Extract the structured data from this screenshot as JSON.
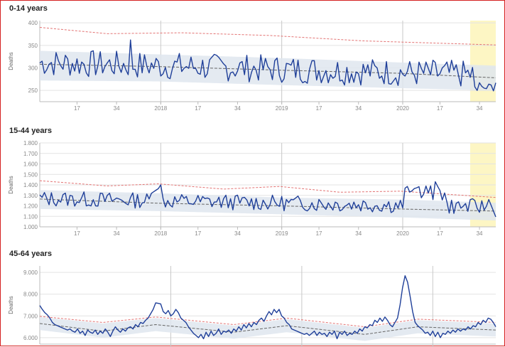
{
  "x_tick_labels": [
    "17",
    "34",
    "2018",
    "17",
    "34",
    "2019",
    "17",
    "34",
    "2020",
    "17",
    "34"
  ],
  "colors": {
    "observed": "#1f3f99",
    "baseline": "#666666",
    "threshold": "#e37373",
    "band": "#dfe6ee",
    "highlight": "#fdf6c4",
    "grid": "#e3e3e3",
    "year_line": "#c8c8c8"
  },
  "chart_data": [
    {
      "type": "line",
      "title": "0-14 years",
      "ylabel": "Deaths",
      "ylim": [
        225,
        405
      ],
      "yticks": [
        250,
        300,
        350,
        400
      ],
      "yticklabels": [
        "250",
        "300",
        "350",
        "400"
      ],
      "x_range": "2017 week 1 to 2020 week 41",
      "series": [
        {
          "role": "observed",
          "values_from": "image"
        },
        {
          "role": "baseline",
          "values": [
            [
              1,
              308
            ],
            [
              52,
              303
            ],
            [
              104,
              295
            ],
            [
              156,
              288
            ],
            [
              197,
              278
            ]
          ]
        },
        {
          "role": "threshold",
          "values": [
            [
              1,
              390
            ],
            [
              30,
              376
            ],
            [
              62,
              378
            ],
            [
              100,
              372
            ],
            [
              140,
              360
            ],
            [
              197,
              351
            ]
          ]
        },
        {
          "role": "band",
          "upper": [
            [
              1,
              338
            ],
            [
              52,
              330
            ],
            [
              104,
              322
            ],
            [
              156,
              312
            ],
            [
              197,
              305
            ]
          ],
          "lower": [
            [
              1,
              272
            ],
            [
              52,
              270
            ],
            [
              104,
              262
            ],
            [
              156,
              255
            ],
            [
              197,
              250
            ]
          ]
        }
      ]
    },
    {
      "type": "line",
      "title": "15-44 years",
      "ylabel": "Deaths",
      "ylim": [
        1000,
        1800
      ],
      "yticks": [
        1000,
        1100,
        1200,
        1300,
        1400,
        1500,
        1600,
        1700,
        1800
      ],
      "yticklabels": [
        "1.000",
        "1.100",
        "1.200",
        "1.300",
        "1.400",
        "1.500",
        "1.600",
        "1.700",
        "1.800"
      ],
      "x_range": "2017 week 1 to 2020 week 41",
      "series": [
        {
          "role": "observed",
          "values_from": "image"
        },
        {
          "role": "baseline",
          "values": [
            [
              1,
              1265
            ],
            [
              52,
              1225
            ],
            [
              104,
              1200
            ],
            [
              156,
              1170
            ],
            [
              197,
              1150
            ]
          ]
        },
        {
          "role": "threshold",
          "values": [
            [
              1,
              1440
            ],
            [
              30,
              1390
            ],
            [
              52,
              1410
            ],
            [
              80,
              1360
            ],
            [
              104,
              1385
            ],
            [
              130,
              1330
            ],
            [
              156,
              1340
            ],
            [
              197,
              1280
            ]
          ]
        },
        {
          "role": "band",
          "upper": [
            [
              1,
              1350
            ],
            [
              52,
              1320
            ],
            [
              104,
              1280
            ],
            [
              156,
              1260
            ],
            [
              197,
              1230
            ]
          ],
          "lower": [
            [
              1,
              1170
            ],
            [
              52,
              1150
            ],
            [
              104,
              1120
            ],
            [
              156,
              1090
            ],
            [
              197,
              1060
            ]
          ]
        }
      ]
    },
    {
      "type": "line",
      "title": "45-64 years",
      "ylabel": "Deaths",
      "ylim": [
        5700,
        9300
      ],
      "yticks": [
        6000,
        7000,
        8000,
        9000
      ],
      "yticklabels": [
        "6.000",
        "7.000",
        "8.000",
        "9.000"
      ],
      "x_range": "2017 week 1 to 2020 week 41",
      "series": [
        {
          "role": "observed",
          "values": [
            [
              1,
              7480
            ],
            [
              2,
              7300
            ],
            [
              3,
              7150
            ],
            [
              4,
              7050
            ],
            [
              5,
              6900
            ],
            [
              6,
              6700
            ],
            [
              7,
              6600
            ],
            [
              8,
              6550
            ],
            [
              9,
              6500
            ],
            [
              10,
              6450
            ],
            [
              11,
              6400
            ],
            [
              12,
              6350
            ],
            [
              13,
              6400
            ],
            [
              14,
              6300
            ],
            [
              15,
              6250
            ],
            [
              16,
              6400
            ],
            [
              17,
              6200
            ],
            [
              18,
              6300
            ],
            [
              19,
              6100
            ],
            [
              20,
              6350
            ],
            [
              21,
              6250
            ],
            [
              22,
              6200
            ],
            [
              23,
              6350
            ],
            [
              24,
              6150
            ],
            [
              25,
              6300
            ],
            [
              26,
              6200
            ],
            [
              27,
              6400
            ],
            [
              28,
              6250
            ],
            [
              29,
              6050
            ],
            [
              30,
              6300
            ],
            [
              31,
              6500
            ],
            [
              32,
              6350
            ],
            [
              33,
              6250
            ],
            [
              34,
              6400
            ],
            [
              35,
              6300
            ],
            [
              36,
              6450
            ],
            [
              37,
              6500
            ],
            [
              38,
              6400
            ],
            [
              39,
              6600
            ],
            [
              40,
              6500
            ],
            [
              41,
              6700
            ],
            [
              42,
              6650
            ],
            [
              43,
              6800
            ],
            [
              44,
              6900
            ],
            [
              45,
              7100
            ],
            [
              46,
              7300
            ],
            [
              47,
              7600
            ],
            [
              48,
              7580
            ],
            [
              49,
              7550
            ],
            [
              50,
              7200
            ],
            [
              51,
              7100
            ],
            [
              52,
              7250
            ],
            [
              53,
              7000
            ],
            [
              54,
              7100
            ],
            [
              55,
              7300
            ],
            [
              56,
              7150
            ],
            [
              57,
              6900
            ],
            [
              58,
              6800
            ],
            [
              59,
              6700
            ],
            [
              60,
              6500
            ],
            [
              61,
              6350
            ],
            [
              62,
              6200
            ],
            [
              63,
              6100
            ],
            [
              64,
              6000
            ],
            [
              65,
              6150
            ],
            [
              66,
              5950
            ],
            [
              67,
              6250
            ],
            [
              68,
              6050
            ],
            [
              69,
              6300
            ],
            [
              70,
              6100
            ],
            [
              71,
              6200
            ],
            [
              72,
              6400
            ],
            [
              73,
              6150
            ],
            [
              74,
              6300
            ],
            [
              75,
              6250
            ],
            [
              76,
              6350
            ],
            [
              77,
              6200
            ],
            [
              78,
              6400
            ],
            [
              79,
              6300
            ],
            [
              80,
              6500
            ],
            [
              81,
              6350
            ],
            [
              82,
              6600
            ],
            [
              83,
              6450
            ],
            [
              84,
              6650
            ],
            [
              85,
              6500
            ],
            [
              86,
              6700
            ],
            [
              87,
              6600
            ],
            [
              88,
              6800
            ],
            [
              89,
              6900
            ],
            [
              90,
              6750
            ],
            [
              91,
              7000
            ],
            [
              92,
              7200
            ],
            [
              93,
              7050
            ],
            [
              94,
              7300
            ],
            [
              95,
              7150
            ],
            [
              96,
              7300
            ],
            [
              97,
              7000
            ],
            [
              98,
              6900
            ],
            [
              99,
              6700
            ],
            [
              100,
              6600
            ],
            [
              101,
              6400
            ],
            [
              102,
              6350
            ],
            [
              103,
              6300
            ],
            [
              104,
              6250
            ],
            [
              105,
              6200
            ],
            [
              106,
              6150
            ],
            [
              107,
              6200
            ],
            [
              108,
              6100
            ],
            [
              109,
              6200
            ],
            [
              110,
              6300
            ],
            [
              111,
              6100
            ],
            [
              112,
              6250
            ],
            [
              113,
              6150
            ],
            [
              114,
              6200
            ],
            [
              115,
              6050
            ],
            [
              116,
              6250
            ],
            [
              117,
              6150
            ],
            [
              118,
              6300
            ],
            [
              119,
              5950
            ],
            [
              120,
              6250
            ],
            [
              121,
              6150
            ],
            [
              122,
              6300
            ],
            [
              123,
              6100
            ],
            [
              124,
              6200
            ],
            [
              125,
              6150
            ],
            [
              126,
              6300
            ],
            [
              127,
              6200
            ],
            [
              128,
              6400
            ],
            [
              129,
              6300
            ],
            [
              130,
              6500
            ],
            [
              131,
              6450
            ],
            [
              132,
              6600
            ],
            [
              133,
              6550
            ],
            [
              134,
              6800
            ],
            [
              135,
              6700
            ],
            [
              136,
              6900
            ],
            [
              137,
              6750
            ],
            [
              138,
              6950
            ],
            [
              139,
              6800
            ],
            [
              140,
              6600
            ],
            [
              141,
              6500
            ],
            [
              142,
              6700
            ],
            [
              143,
              6900
            ],
            [
              144,
              7500
            ],
            [
              145,
              8300
            ],
            [
              146,
              8850
            ],
            [
              147,
              8550
            ],
            [
              148,
              7900
            ],
            [
              149,
              7200
            ],
            [
              150,
              6700
            ],
            [
              151,
              6550
            ],
            [
              152,
              6450
            ],
            [
              153,
              6350
            ],
            [
              154,
              6200
            ],
            [
              155,
              6250
            ],
            [
              156,
              6100
            ],
            [
              157,
              6300
            ],
            [
              158,
              6050
            ],
            [
              159,
              6250
            ],
            [
              160,
              6000
            ],
            [
              161,
              6200
            ],
            [
              162,
              6150
            ],
            [
              163,
              6300
            ],
            [
              164,
              6200
            ],
            [
              165,
              6350
            ],
            [
              166,
              6250
            ],
            [
              167,
              6400
            ],
            [
              168,
              6300
            ],
            [
              169,
              6400
            ],
            [
              170,
              6350
            ],
            [
              171,
              6500
            ],
            [
              172,
              6400
            ],
            [
              173,
              6550
            ],
            [
              174,
              6500
            ],
            [
              175,
              6700
            ],
            [
              176,
              6600
            ],
            [
              177,
              6800
            ],
            [
              178,
              6700
            ],
            [
              179,
              6900
            ],
            [
              180,
              6850
            ],
            [
              181,
              6700
            ],
            [
              182,
              6500
            ]
          ]
        },
        {
          "role": "baseline",
          "values": [
            [
              1,
              6650
            ],
            [
              26,
              6300
            ],
            [
              47,
              6600
            ],
            [
              78,
              6250
            ],
            [
              99,
              6550
            ],
            [
              130,
              6150
            ],
            [
              151,
              6500
            ],
            [
              182,
              6350
            ]
          ]
        },
        {
          "role": "threshold",
          "values": [
            [
              1,
              6980
            ],
            [
              26,
              6700
            ],
            [
              47,
              6950
            ],
            [
              78,
              6600
            ],
            [
              99,
              6900
            ],
            [
              130,
              6500
            ],
            [
              151,
              6850
            ],
            [
              182,
              6700
            ]
          ]
        },
        {
          "role": "band",
          "upper": [
            [
              1,
              6950
            ],
            [
              26,
              6650
            ],
            [
              47,
              6900
            ],
            [
              78,
              6550
            ],
            [
              99,
              6850
            ],
            [
              130,
              6450
            ],
            [
              151,
              6800
            ],
            [
              182,
              6650
            ]
          ],
          "lower": [
            [
              1,
              6350
            ],
            [
              26,
              6000
            ],
            [
              47,
              6300
            ],
            [
              78,
              5950
            ],
            [
              99,
              6250
            ],
            [
              130,
              5850
            ],
            [
              151,
              6200
            ],
            [
              182,
              6050
            ]
          ]
        }
      ]
    }
  ]
}
